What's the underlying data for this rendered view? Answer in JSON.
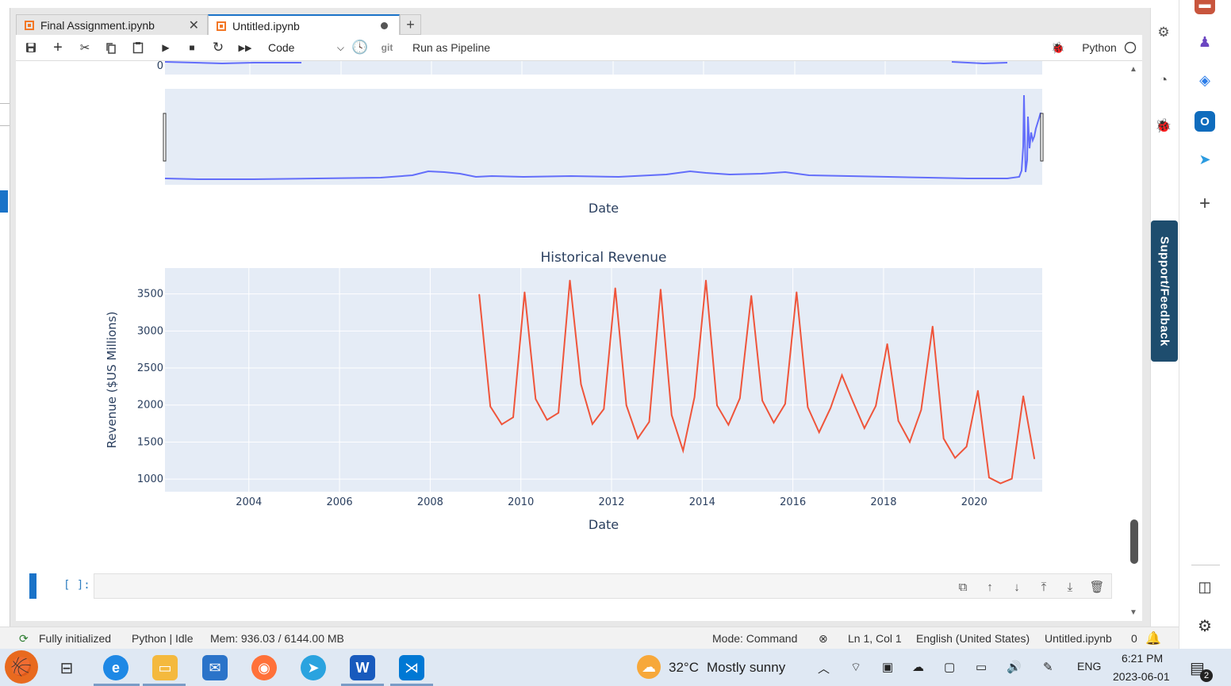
{
  "tabs": [
    {
      "label": "Final Assignment.ipynb",
      "active": false
    },
    {
      "label": "Untitled.ipynb",
      "active": true,
      "modified": true
    }
  ],
  "toolbar": {
    "cell_type": "Code",
    "git_label": "git",
    "pipeline_label": "Run as Pipeline",
    "kernel_name": "Python"
  },
  "upper_plot": {
    "y_tick": "0",
    "x_title": "Date"
  },
  "chart_data": [
    {
      "type": "line",
      "title": "Historical Revenue",
      "xlabel": "Date",
      "ylabel": "Revenue ($US Millions)",
      "xlim": [
        2002.15,
        2021.5
      ],
      "ylim": [
        830,
        3850
      ],
      "x_ticks": [
        "2004",
        "2006",
        "2008",
        "2010",
        "2012",
        "2014",
        "2016",
        "2018",
        "2020"
      ],
      "y_ticks": [
        "1000",
        "1500",
        "2000",
        "2500",
        "3000",
        "3500"
      ],
      "grid": true,
      "color": "#ef553b",
      "series": [
        {
          "x": [
            "2009-01-31",
            "2009-04-30",
            "2009-07-31",
            "2009-10-31",
            "2010-01-31",
            "2010-04-30",
            "2010-07-31",
            "2010-10-31",
            "2011-01-31",
            "2011-04-30",
            "2011-07-31",
            "2011-10-31",
            "2012-01-31",
            "2012-04-30",
            "2012-07-31",
            "2012-10-31",
            "2013-01-31",
            "2013-04-30",
            "2013-07-31",
            "2013-10-31",
            "2014-01-31",
            "2014-04-30",
            "2014-07-31",
            "2014-10-31",
            "2015-01-31",
            "2015-04-30",
            "2015-07-31",
            "2015-10-31",
            "2016-01-31",
            "2016-04-30",
            "2016-07-31",
            "2016-10-31",
            "2017-01-31",
            "2017-04-30",
            "2017-07-31",
            "2017-10-31",
            "2018-01-31",
            "2018-04-30",
            "2018-07-31",
            "2018-10-31",
            "2019-01-31",
            "2019-04-30",
            "2019-07-31",
            "2019-10-31",
            "2020-01-31",
            "2020-04-30",
            "2020-07-31",
            "2020-10-31",
            "2021-01-31",
            "2021-04-30"
          ],
          "values": [
            3492,
            1981,
            1739,
            1835,
            3524,
            2082,
            1799,
            1894,
            3684,
            2281,
            1744,
            1947,
            3579,
            1997,
            1550,
            1773,
            3562,
            1865,
            1384,
            2107,
            3684,
            1996,
            1733,
            2092,
            3476,
            2061,
            1762,
            2016,
            3525,
            1972,
            1632,
            1959,
            2403,
            2045,
            1688,
            1989,
            2825,
            1786,
            1501,
            1935,
            3063,
            1548,
            1286,
            1439,
            2194,
            1021,
            942,
            1005,
            2122,
            1277
          ]
        }
      ]
    }
  ],
  "cell": {
    "prompt": "[ ]:"
  },
  "sidebar": {
    "support_label": "Support/Feedback"
  },
  "statusbar": {
    "init": "Fully initialized",
    "kernel": "Python | Idle",
    "mem": "Mem: 936.03 / 6144.00 MB",
    "mode": "Mode: Command",
    "position": "Ln 1, Col 1",
    "language": "English (United States)",
    "filename": "Untitled.ipynb",
    "count": "0"
  },
  "taskbar": {
    "weather_temp": "32°C",
    "weather_text": "Mostly sunny",
    "lang": "ENG",
    "time": "6:21 PM",
    "date": "2023-06-01",
    "notif_count": "2"
  }
}
